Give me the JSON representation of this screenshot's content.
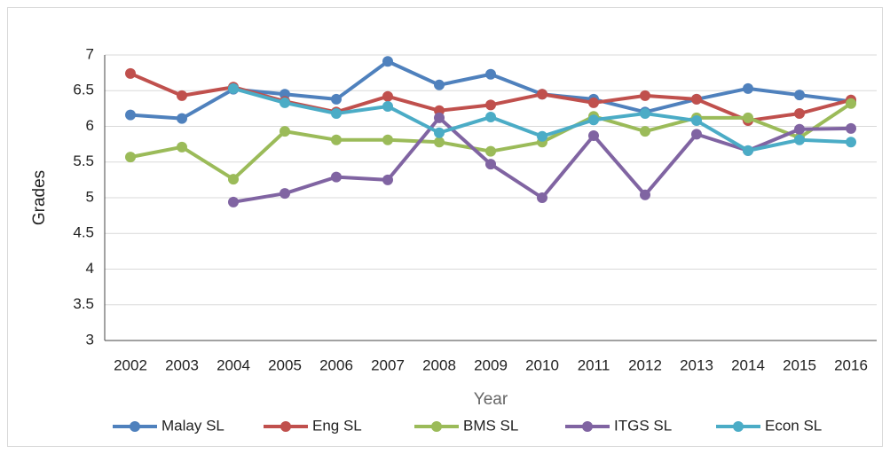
{
  "chart_data": {
    "type": "line",
    "x_label": "Year",
    "y_label": "Grades",
    "categories": [
      "2002",
      "2003",
      "2004",
      "2005",
      "2006",
      "2007",
      "2008",
      "2009",
      "2010",
      "2011",
      "2012",
      "2013",
      "2014",
      "2015",
      "2016"
    ],
    "series": [
      {
        "name": "Malay SL",
        "color": "#4f81bd",
        "values": [
          6.16,
          6.11,
          6.52,
          6.45,
          6.38,
          6.91,
          6.58,
          6.73,
          6.45,
          6.38,
          6.2,
          6.38,
          6.53,
          6.44,
          6.35
        ]
      },
      {
        "name": "Eng SL",
        "color": "#c0504d",
        "values": [
          6.74,
          6.43,
          6.55,
          6.35,
          6.2,
          6.42,
          6.22,
          6.3,
          6.45,
          6.33,
          6.43,
          6.38,
          6.08,
          6.18,
          6.37
        ]
      },
      {
        "name": "BMS SL",
        "color": "#9bbb59",
        "values": [
          5.57,
          5.71,
          5.26,
          5.93,
          5.81,
          5.81,
          5.78,
          5.65,
          5.78,
          6.14,
          5.93,
          6.12,
          6.12,
          5.84,
          6.32
        ]
      },
      {
        "name": "ITGS SL",
        "color": "#8064a2",
        "values": [
          null,
          null,
          4.94,
          5.06,
          5.29,
          5.25,
          6.12,
          5.47,
          5.0,
          5.87,
          5.04,
          5.89,
          5.66,
          5.96,
          5.97
        ]
      },
      {
        "name": "Econ SL",
        "color": "#4bacc6",
        "values": [
          null,
          null,
          6.53,
          6.33,
          6.18,
          6.28,
          5.91,
          6.13,
          5.86,
          6.09,
          6.18,
          6.08,
          5.66,
          5.81,
          5.78
        ]
      }
    ],
    "ylim": [
      3,
      7
    ],
    "yticks": [
      3,
      3.5,
      4,
      4.5,
      5,
      5.5,
      6,
      6.5,
      7
    ],
    "grid": true,
    "legend": "bottom"
  }
}
